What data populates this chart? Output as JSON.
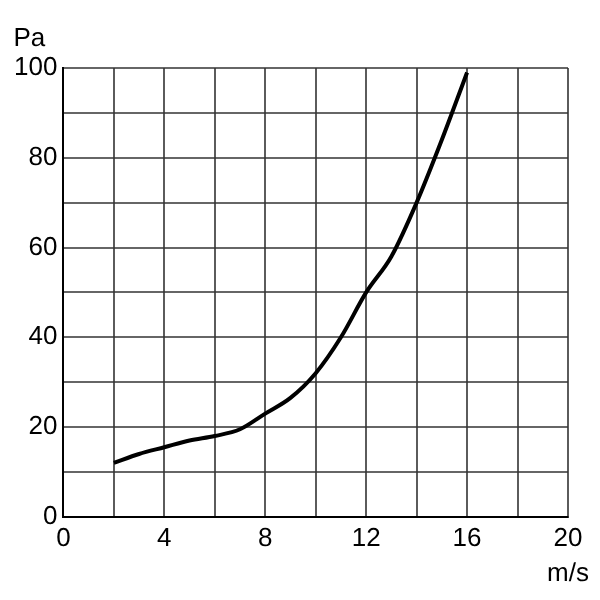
{
  "chart_data": {
    "type": "line",
    "xlabel": "m/s",
    "ylabel": "Pa",
    "x": [
      2,
      3,
      4,
      5,
      6,
      7,
      8,
      9,
      10,
      11,
      12,
      13,
      14,
      15,
      16
    ],
    "series": [
      {
        "color": "#000000",
        "values": [
          12,
          14,
          15.5,
          17,
          18,
          19.5,
          23,
          26.5,
          32,
          40,
          50,
          58,
          70,
          84,
          99
        ]
      }
    ],
    "xlim": [
      0,
      20
    ],
    "xticks": [
      0,
      {
        "value": 2,
        "label": null
      },
      4,
      {
        "value": 6,
        "label": null
      },
      8,
      {
        "value": 10,
        "label": null
      },
      12,
      {
        "value": 14,
        "label": null
      },
      16,
      {
        "value": 18,
        "label": null
      },
      20
    ],
    "ylim": [
      0,
      100
    ],
    "yticks": [
      0,
      {
        "value": 10,
        "label": null
      },
      20,
      {
        "value": 30,
        "label": null
      },
      40,
      {
        "value": 50,
        "label": null
      },
      60,
      {
        "value": 70,
        "label": null
      },
      80,
      {
        "value": 90,
        "label": null
      },
      100
    ],
    "grid": true,
    "legend": false,
    "marker": "none",
    "line_style": "solid"
  }
}
